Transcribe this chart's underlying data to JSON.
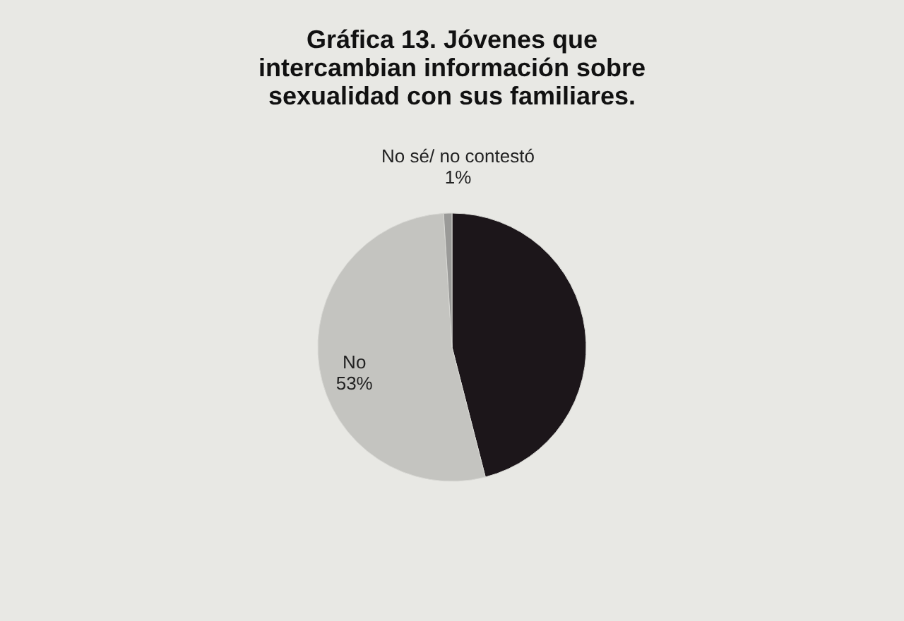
{
  "chart_data": {
    "type": "pie",
    "title": [
      "Gráfica 13. Jóvenes que",
      "intercambian información sobre",
      "sexualidad con sus familiares."
    ],
    "categories": [
      null,
      "No",
      "No sé/ no contestó"
    ],
    "values": [
      46,
      53,
      1
    ],
    "colors": [
      "#1c161a",
      "#c4c4c0",
      "#9a9a98"
    ],
    "value_labels": [
      null,
      "53%",
      "1%"
    ],
    "legend": false
  }
}
